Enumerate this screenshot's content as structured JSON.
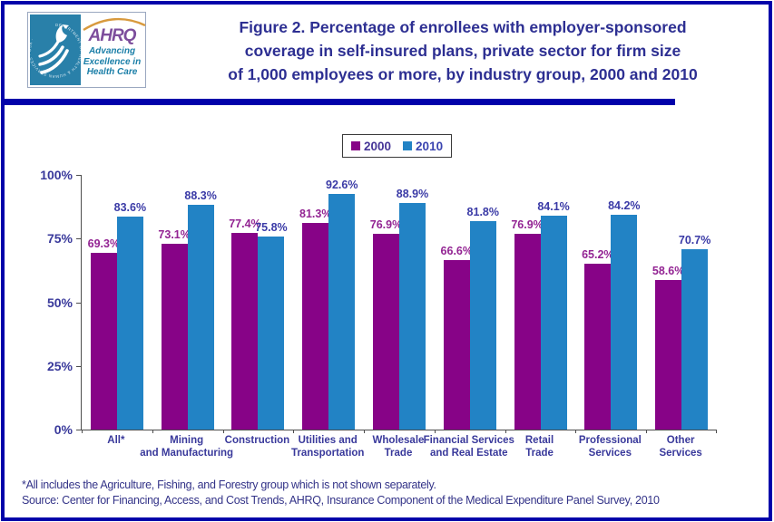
{
  "header": {
    "title_lines": [
      "Figure 2. Percentage of enrollees with employer-sponsored",
      "coverage in self-insured plans, private sector for firm size",
      "of 1,000 employees or more, by industry group, 2000 and 2010"
    ]
  },
  "logo": {
    "seal_ring_text": "DEPARTMENT OF HEALTH & HUMAN SERVICES · USA ·",
    "ahrq": "AHRQ",
    "tagline_lines": [
      "Advancing",
      "Excellence in",
      "Health Care"
    ]
  },
  "colors": {
    "frame_navy": "#0202AA",
    "title_text": "#2D2F92",
    "axis_text": "#39399B",
    "footnote_text": "#333388",
    "hhs_teal": "#2980A9",
    "ahrq_purple": "#7D4E9C",
    "ahrq_teal": "#1B7FA8",
    "arc_orange": "#D89A3E"
  },
  "chart_data": {
    "type": "bar",
    "title": "Figure 2. Percentage of enrollees with employer-sponsored coverage in self-insured plans, private sector for firm size of 1,000 employees or more, by industry group, 2000 and 2010",
    "categories": [
      "All*",
      "Mining and Manufacturing",
      "Construction",
      "Utilities and Transportation",
      "Wholesale Trade",
      "Financial Services and Real Estate",
      "Retail Trade",
      "Professional Services",
      "Other Services"
    ],
    "category_label_lines": [
      [
        "All*"
      ],
      [
        "Mining",
        "and Manufacturing"
      ],
      [
        "Construction"
      ],
      [
        "Utilities and",
        "Transportation"
      ],
      [
        "Wholesale",
        "Trade"
      ],
      [
        "Financial Services",
        "and Real Estate"
      ],
      [
        "Retail",
        "Trade"
      ],
      [
        "Professional",
        "Services"
      ],
      [
        "Other",
        "Services"
      ]
    ],
    "series": [
      {
        "name": "2000",
        "color": "#870387",
        "label_color": "#932493",
        "legend_text_color": "#453497",
        "values": [
          69.3,
          73.1,
          77.4,
          81.3,
          76.9,
          66.6,
          76.9,
          65.2,
          58.6
        ]
      },
      {
        "name": "2010",
        "color": "#2283C5",
        "label_color": "#3A3AA6",
        "legend_text_color": "#3A44B0",
        "values": [
          83.6,
          88.3,
          75.8,
          92.6,
          88.9,
          81.8,
          84.1,
          84.2,
          70.7
        ]
      }
    ],
    "value_suffix": "%",
    "xlabel": "",
    "ylabel": "",
    "ylim": [
      0,
      100
    ],
    "yticks": [
      0,
      25,
      50,
      75,
      100
    ],
    "ytick_labels": [
      "0%",
      "25%",
      "50%",
      "75%",
      "100%"
    ],
    "grid": false,
    "legend_position": "top-center"
  },
  "footnotes": {
    "note": "*All includes the Agriculture, Fishing, and Forestry group which is not shown separately.",
    "source": "Source: Center for Financing, Access, and Cost Trends, AHRQ, Insurance Component of the Medical Expenditure Panel Survey, 2010"
  }
}
